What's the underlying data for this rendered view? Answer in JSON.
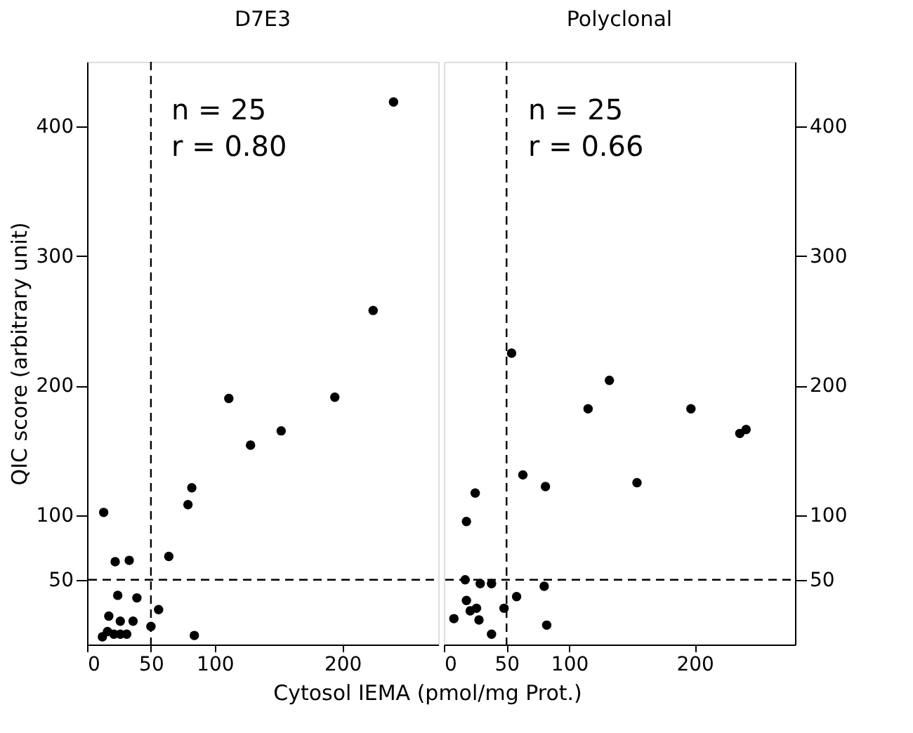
{
  "chart_data": [
    {
      "type": "scatter",
      "title": "D7E3",
      "xlabel": "Cytosol IEMA (pmol/mg Prot.)",
      "ylabel": "QIC score (arbitrary unit)",
      "x": [
        13,
        22,
        33,
        24,
        39,
        17,
        26,
        36,
        12,
        16,
        21,
        26,
        31,
        50,
        56,
        64,
        79,
        82,
        84,
        128,
        152,
        111,
        194,
        224,
        240
      ],
      "values": [
        102,
        64,
        65,
        38,
        36,
        22,
        18,
        18,
        6,
        10,
        8,
        8,
        8,
        14,
        27,
        68,
        108,
        121,
        7,
        154,
        165,
        190,
        191,
        258,
        419
      ],
      "color": "#000000",
      "marker": "circle",
      "grid": false,
      "xlim": [
        0,
        275
      ],
      "xticks": [
        0,
        50,
        100,
        200
      ],
      "ylim": [
        0,
        450
      ],
      "yticks": [
        50,
        100,
        200,
        300,
        400
      ],
      "ref_lines": [
        {
          "axis": "x",
          "value": 50,
          "line_style": "dashed"
        },
        {
          "axis": "y",
          "value": 50,
          "line_style": "dashed"
        }
      ],
      "annotations": [
        "n = 25",
        "r = 0.80"
      ]
    },
    {
      "type": "scatter",
      "title": "Polyclonal",
      "x": [
        54,
        132,
        115,
        197,
        236,
        241,
        63,
        81,
        154,
        25,
        29,
        38,
        80,
        58,
        48,
        26,
        28,
        38,
        82,
        8,
        18,
        18,
        17,
        21
      ],
      "values": [
        225,
        204,
        182,
        182,
        163,
        166,
        131,
        122,
        125,
        117,
        47,
        47,
        45,
        37,
        28,
        28,
        19,
        8,
        15,
        20,
        34,
        95,
        50,
        26
      ],
      "color": "#000000",
      "marker": "circle",
      "grid": false,
      "xlim": [
        0,
        280
      ],
      "xticks": [
        0,
        50,
        100,
        200
      ],
      "ylim": [
        0,
        450
      ],
      "yticks": [
        50,
        100,
        200,
        300,
        400
      ],
      "ref_lines": [
        {
          "axis": "x",
          "value": 50,
          "line_style": "dashed"
        },
        {
          "axis": "y",
          "value": 50,
          "line_style": "dashed"
        }
      ],
      "annotations": [
        "n = 25",
        "r = 0.66"
      ]
    }
  ]
}
